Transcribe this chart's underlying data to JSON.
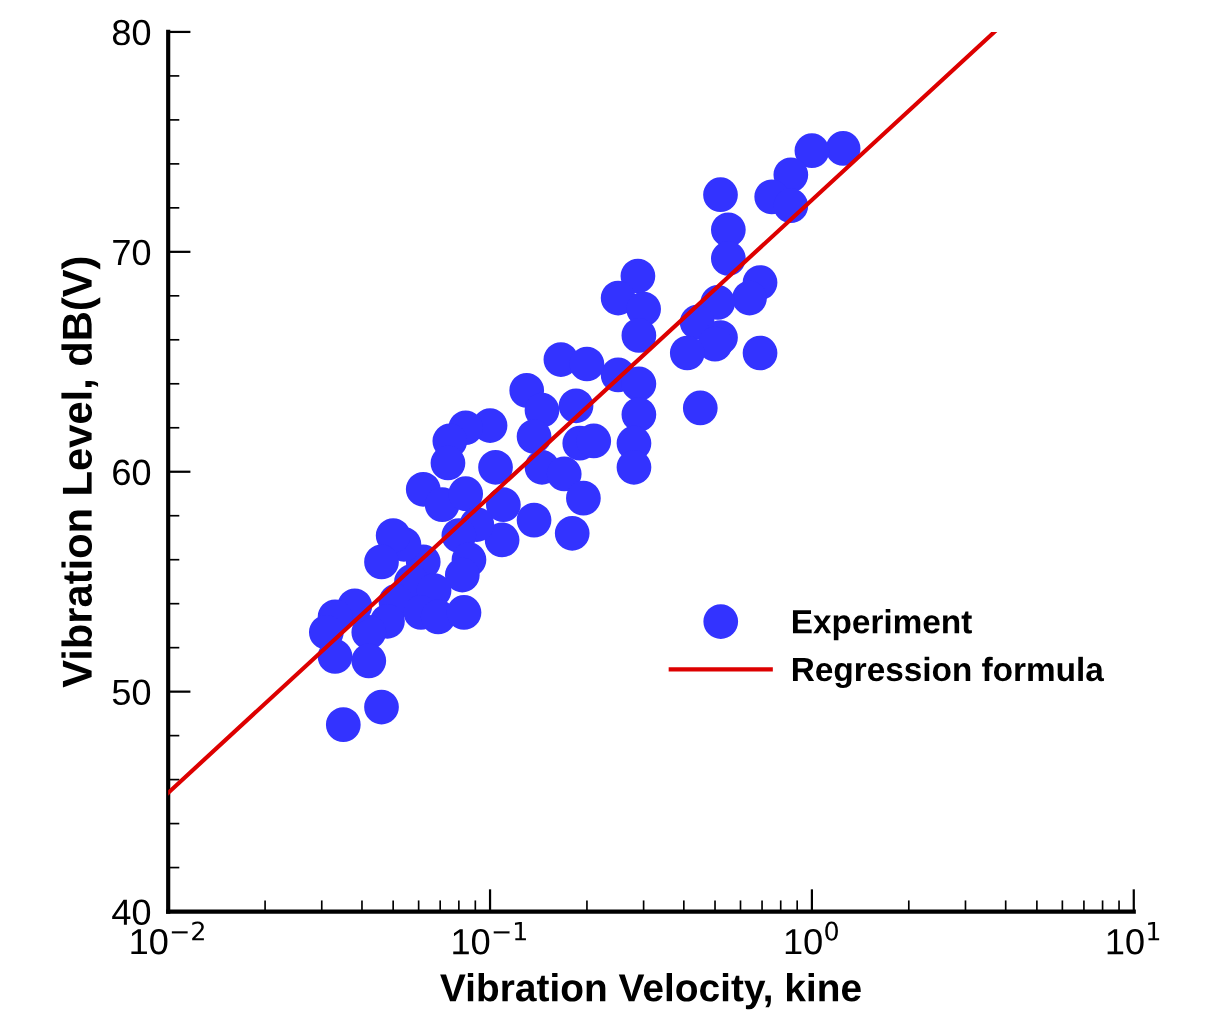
{
  "chart_data": {
    "type": "scatter",
    "xlabel": "Vibration Velocity, kine",
    "ylabel": "Vibration Level, dB(V)",
    "log": "x",
    "xlim": [
      0.01,
      10
    ],
    "ylim": [
      40,
      80
    ],
    "xticks": [
      {
        "value": 0.01,
        "label": "10$^{−2}$"
      },
      {
        "value": 0.1,
        "label": "10$^{−1}$"
      },
      {
        "value": 1,
        "label": "10$^{0}$"
      },
      {
        "value": 10,
        "label": "10$^{1}$"
      }
    ],
    "yticks": [
      40,
      50,
      60,
      70,
      80
    ],
    "grid": false,
    "legend": "bottom right",
    "marker": "circle",
    "series": [
      {
        "name": "Experiment",
        "color": "#3333ff",
        "x": [
          1.25,
          1.0,
          0.86,
          0.75,
          0.86,
          0.52,
          0.55,
          0.55,
          0.69,
          0.64,
          0.51,
          0.44,
          0.52,
          0.5,
          0.41,
          0.69,
          0.45,
          0.288,
          0.25,
          0.3,
          0.29,
          0.25,
          0.29,
          0.29,
          0.28,
          0.28,
          0.166,
          0.2,
          0.13,
          0.145,
          0.185,
          0.137,
          0.19,
          0.21,
          0.145,
          0.17,
          0.195,
          0.18,
          0.137,
          0.109,
          0.11,
          0.104,
          0.1,
          0.084,
          0.075,
          0.074,
          0.062,
          0.071,
          0.084,
          0.091,
          0.08,
          0.086,
          0.082,
          0.062,
          0.054,
          0.05,
          0.046,
          0.057,
          0.067,
          0.051,
          0.061,
          0.069,
          0.083,
          0.048,
          0.042,
          0.038,
          0.033,
          0.031,
          0.033,
          0.042,
          0.046,
          0.035
        ],
        "values": [
          74.7,
          74.6,
          73.5,
          72.5,
          72.1,
          72.6,
          71.0,
          69.7,
          68.6,
          67.9,
          67.7,
          66.8,
          66.1,
          65.8,
          65.4,
          65.4,
          62.9,
          68.9,
          67.9,
          67.4,
          66.2,
          64.4,
          64.0,
          62.6,
          61.3,
          60.2,
          65.1,
          64.9,
          63.7,
          62.8,
          63.0,
          61.6,
          61.3,
          61.4,
          60.2,
          59.9,
          58.8,
          57.2,
          57.8,
          56.9,
          58.5,
          60.2,
          62.1,
          62.0,
          61.4,
          60.4,
          59.2,
          58.5,
          59.0,
          57.6,
          57.1,
          56.0,
          55.3,
          55.9,
          56.7,
          57.1,
          55.9,
          55.0,
          54.6,
          54.1,
          53.6,
          53.4,
          53.6,
          53.2,
          52.7,
          53.9,
          53.4,
          52.7,
          51.6,
          51.4,
          49.3,
          48.5
        ]
      },
      {
        "name": "Regression formula",
        "type": "line",
        "color": "#dd0000",
        "marker": "none",
        "line_style": "solid",
        "x": [
          0.01,
          3.69
        ],
        "values": [
          45.4,
          80.0
        ]
      }
    ]
  }
}
